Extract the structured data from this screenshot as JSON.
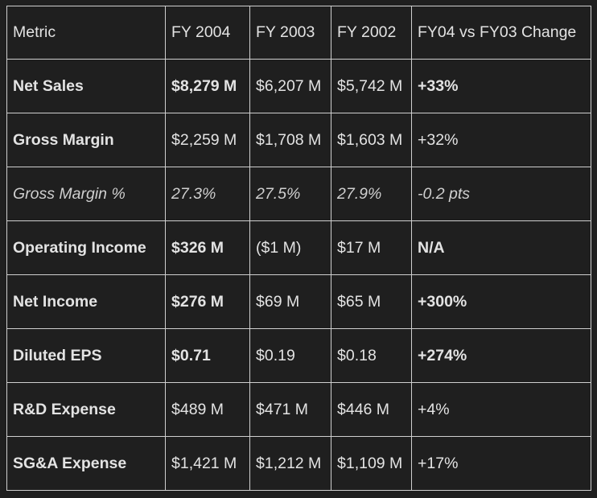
{
  "table": {
    "headers": [
      "Metric",
      "FY 2004",
      "FY 2003",
      "FY 2002",
      "FY04 vs FY03 Change"
    ],
    "rows": [
      {
        "metric": "Net Sales",
        "fy2004": "$8,279 M",
        "fy2003": "$6,207 M",
        "fy2002": "$5,742 M",
        "change": "+33%"
      },
      {
        "metric": "Gross Margin",
        "fy2004": "$2,259 M",
        "fy2003": "$1,708 M",
        "fy2002": "$1,603 M",
        "change": "+32%"
      },
      {
        "metric": "Gross Margin %",
        "fy2004": "27.3%",
        "fy2003": "27.5%",
        "fy2002": "27.9%",
        "change": "-0.2 pts"
      },
      {
        "metric": "Operating Income",
        "fy2004": "$326 M",
        "fy2003": "($1 M)",
        "fy2002": "$17 M",
        "change": "N/A"
      },
      {
        "metric": "Net Income",
        "fy2004": "$276 M",
        "fy2003": "$69 M",
        "fy2002": "$65 M",
        "change": "+300%"
      },
      {
        "metric": "Diluted EPS",
        "fy2004": "$0.71",
        "fy2003": "$0.19",
        "fy2002": "$0.18",
        "change": "+274%"
      },
      {
        "metric": "R&D Expense",
        "fy2004": "$489 M",
        "fy2003": "$471 M",
        "fy2002": "$446 M",
        "change": "+4%"
      },
      {
        "metric": "SG&A Expense",
        "fy2004": "$1,421 M",
        "fy2003": "$1,212 M",
        "fy2002": "$1,109 M",
        "change": "+17%"
      }
    ]
  },
  "colors": {
    "background": "#1f1f1f",
    "text": "#e3e3e3",
    "border": "#cfcfcf"
  }
}
